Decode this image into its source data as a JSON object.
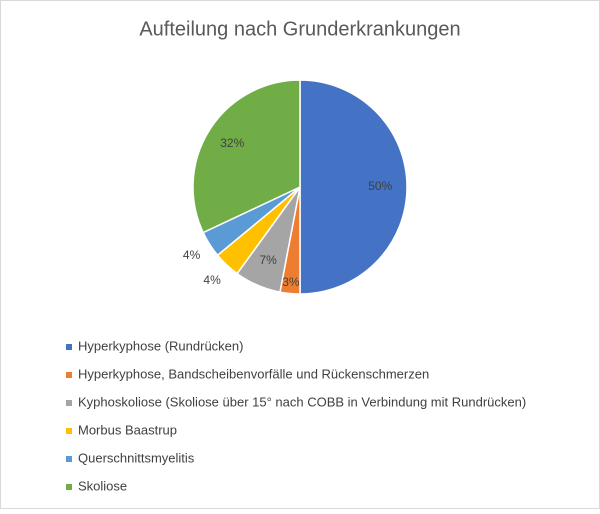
{
  "chart_data": {
    "type": "pie",
    "title": "Aufteilung nach Grunderkrankungen",
    "categories": [
      "Hyperkyphose (Rundrücken)",
      "Hyperkyphose, Bandscheibenvorfälle und Rückenschmerzen",
      "Kyphoskoliose (Skoliose über 15° nach COBB in Verbindung mit Rundrücken)",
      "Morbus Baastrup",
      "Querschnittsmyelitis",
      "Skoliose"
    ],
    "values": [
      50,
      3,
      7,
      4,
      4,
      32
    ],
    "value_labels": [
      "50%",
      "3%",
      "7%",
      "4%",
      "4%",
      "32%"
    ],
    "colors": [
      "#4472c4",
      "#ed7d31",
      "#a5a5a5",
      "#ffc000",
      "#5b9bd5",
      "#70ad47"
    ],
    "legend": "bottom"
  }
}
